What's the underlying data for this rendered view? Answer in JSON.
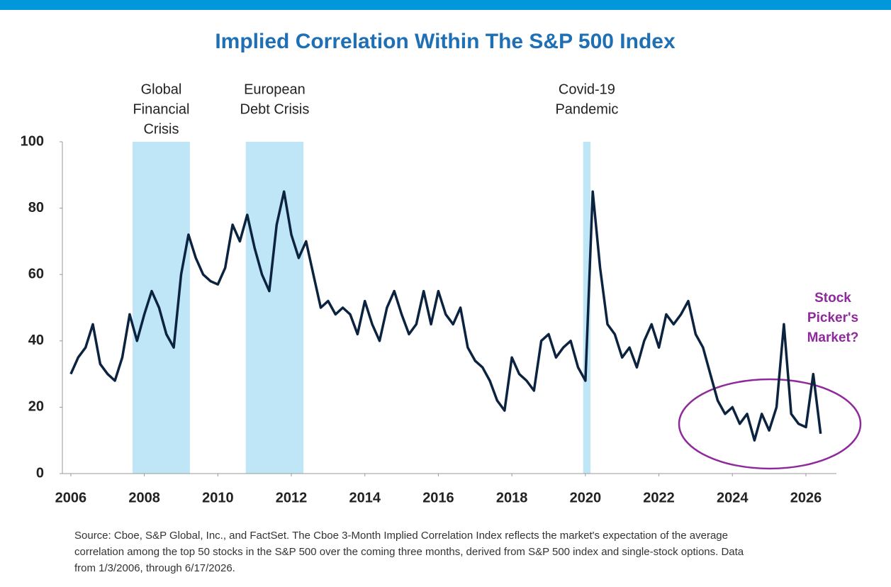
{
  "chart_data": {
    "type": "line",
    "title": "Implied Correlation Within The S&P 500 Index",
    "x": [
      2006,
      2006.2,
      2006.4,
      2006.6,
      2006.8,
      2007,
      2007.2,
      2007.4,
      2007.6,
      2007.8,
      2008,
      2008.2,
      2008.4,
      2008.6,
      2008.8,
      2009,
      2009.2,
      2009.4,
      2009.6,
      2009.8,
      2010,
      2010.2,
      2010.4,
      2010.6,
      2010.8,
      2011,
      2011.2,
      2011.4,
      2011.6,
      2011.8,
      2012,
      2012.2,
      2012.4,
      2012.6,
      2012.8,
      2013,
      2013.2,
      2013.4,
      2013.6,
      2013.8,
      2014,
      2014.2,
      2014.4,
      2014.6,
      2014.8,
      2015,
      2015.2,
      2015.4,
      2015.6,
      2015.8,
      2016,
      2016.2,
      2016.4,
      2016.6,
      2016.8,
      2017,
      2017.2,
      2017.4,
      2017.6,
      2017.8,
      2018,
      2018.2,
      2018.4,
      2018.6,
      2018.8,
      2019,
      2019.2,
      2019.4,
      2019.6,
      2019.8,
      2020,
      2020.2,
      2020.4,
      2020.6,
      2020.8,
      2021,
      2021.2,
      2021.4,
      2021.6,
      2021.8,
      2022,
      2022.2,
      2022.4,
      2022.6,
      2022.8,
      2023,
      2023.2,
      2023.4,
      2023.6,
      2023.8,
      2024,
      2024.2,
      2024.4,
      2024.6,
      2024.8,
      2025,
      2025.2,
      2025.4,
      2025.6,
      2025.8,
      2026,
      2026.2,
      2026.4
    ],
    "series": [
      {
        "color": "#0c2340",
        "values": [
          30,
          35,
          38,
          45,
          33,
          30,
          28,
          35,
          48,
          40,
          48,
          55,
          50,
          42,
          38,
          60,
          72,
          65,
          60,
          58,
          57,
          62,
          75,
          70,
          78,
          68,
          60,
          55,
          75,
          85,
          72,
          65,
          70,
          60,
          50,
          52,
          48,
          50,
          48,
          42,
          52,
          45,
          40,
          50,
          55,
          48,
          42,
          45,
          55,
          45,
          55,
          48,
          45,
          50,
          38,
          34,
          32,
          28,
          22,
          19,
          35,
          30,
          28,
          25,
          40,
          42,
          35,
          38,
          40,
          32,
          28,
          85,
          62,
          45,
          42,
          35,
          38,
          32,
          40,
          45,
          38,
          48,
          45,
          48,
          52,
          42,
          38,
          30,
          22,
          18,
          20,
          15,
          18,
          10,
          18,
          13,
          20,
          45,
          18,
          15,
          14,
          30,
          12
        ]
      }
    ],
    "xlim": [
      2005.77,
      2026.83
    ],
    "xticks": [
      2006,
      2008,
      2010,
      2012,
      2014,
      2016,
      2018,
      2020,
      2022,
      2024,
      2026
    ],
    "ylim": [
      0,
      100
    ],
    "yticks": [
      0,
      20,
      40,
      60,
      80,
      100
    ],
    "band_color": "#bfe6f7",
    "bands": [
      {
        "start": 2007.68,
        "end": 2009.24,
        "label_lines": [
          "Global",
          "Financial",
          "Crisis"
        ]
      },
      {
        "start": 2010.76,
        "end": 2012.33,
        "label_lines": [
          "European",
          "Debt Crisis"
        ]
      },
      {
        "start": 2019.94,
        "end": 2020.14,
        "label_lines": [
          "Covid-19",
          "Pandemic"
        ]
      }
    ],
    "annotation_lines": [
      "Stock",
      "Picker's",
      "Market?"
    ],
    "source_lines": [
      "Source: Cboe, S&P Global, Inc., and FactSet. The Cboe 3-Month Implied Correlation Index reflects the market's expectation of the average",
      "correlation among the top 50 stocks in the S&P 500 over the coming three months, derived from S&P 500 index and single-stock options. Data",
      "from 1/3/2006, through 6/17/2026."
    ]
  }
}
